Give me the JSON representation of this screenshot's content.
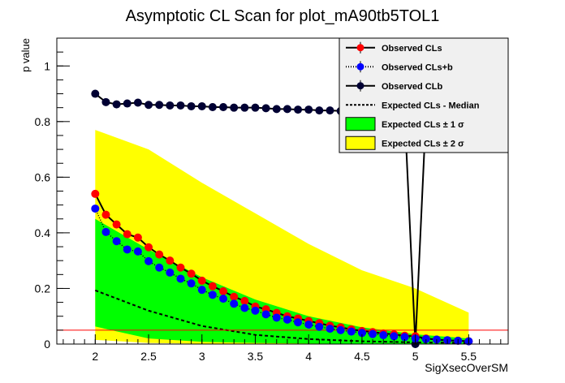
{
  "chart_data": {
    "type": "line",
    "title": "Asymptotic CL Scan for plot_mA90tb5TOL1",
    "xlabel": "SigXsecOverSM",
    "ylabel": "p value",
    "xlim": [
      1.64,
      5.87
    ],
    "ylim": [
      0,
      1.1
    ],
    "xticks": [
      "2",
      "2.5",
      "3",
      "3.5",
      "4",
      "4.5",
      "5",
      "5.5"
    ],
    "yticks": [
      "0",
      "0.2",
      "0.4",
      "0.6",
      "0.8",
      "1"
    ],
    "threshold": 0.05,
    "x": [
      2.0,
      2.1,
      2.2,
      2.3,
      2.4,
      2.5,
      2.6,
      2.7,
      2.8,
      2.9,
      3.0,
      3.1,
      3.2,
      3.3,
      3.4,
      3.5,
      3.6,
      3.7,
      3.8,
      3.9,
      4.0,
      4.1,
      4.2,
      4.3,
      4.4,
      4.5,
      4.6,
      4.7,
      4.8,
      4.9,
      5.0,
      5.1,
      5.2,
      5.3,
      5.4,
      5.5
    ],
    "series": [
      {
        "name": "Observed CLs",
        "color": "#ff0000",
        "values": [
          0.54,
          0.465,
          0.43,
          0.395,
          0.383,
          0.348,
          0.322,
          0.3,
          0.275,
          0.253,
          0.228,
          0.208,
          0.19,
          0.17,
          0.155,
          0.135,
          0.125,
          0.112,
          0.1,
          0.092,
          0.083,
          0.075,
          0.066,
          0.06,
          0.053,
          0.047,
          0.043,
          0.038,
          0.035,
          0.03,
          0.028,
          0.02,
          0.016,
          0.013,
          0.012,
          0.01
        ]
      },
      {
        "name": "Observed CLs+b",
        "color": "#0000ff",
        "values": [
          0.487,
          0.403,
          0.37,
          0.34,
          0.333,
          0.298,
          0.275,
          0.257,
          0.235,
          0.218,
          0.195,
          0.177,
          0.163,
          0.145,
          0.13,
          0.12,
          0.107,
          0.095,
          0.088,
          0.078,
          0.07,
          0.062,
          0.055,
          0.05,
          0.045,
          0.04,
          0.036,
          0.032,
          0.028,
          0.025,
          0.02,
          0.018,
          0.016,
          0.014,
          0.012,
          0.01
        ]
      },
      {
        "name": "Observed CLb",
        "color": "#000033",
        "values": [
          0.9,
          0.87,
          0.862,
          0.865,
          0.868,
          0.86,
          0.86,
          0.858,
          0.858,
          0.855,
          0.855,
          0.852,
          0.852,
          0.85,
          0.85,
          0.85,
          0.848,
          0.845,
          0.845,
          0.843,
          0.843,
          0.84,
          0.84,
          0.838,
          0.838,
          0.835,
          0.835,
          0.833,
          0.832,
          0.83,
          0.0,
          0.83,
          0.83,
          0.83,
          0.83,
          0.83
        ]
      }
    ],
    "expected": {
      "x": [
        2.0,
        2.5,
        3.0,
        3.5,
        4.0,
        4.5,
        5.0,
        5.5
      ],
      "median": [
        0.193,
        0.12,
        0.065,
        0.033,
        0.018,
        0.01,
        0.006,
        0.004
      ],
      "band1_hi": [
        0.45,
        0.34,
        0.24,
        0.16,
        0.1,
        0.06,
        0.035,
        0.02
      ],
      "band1_lo": [
        0.063,
        0.02,
        0.008,
        0.004,
        0.002,
        0.001,
        0.001,
        0.001
      ],
      "band2_hi": [
        0.77,
        0.7,
        0.58,
        0.47,
        0.36,
        0.265,
        0.2,
        0.113
      ],
      "band2_lo": [
        0.015,
        0.004,
        0.001,
        0,
        0,
        0,
        0,
        0
      ]
    },
    "legend": {
      "placement": "top-right",
      "entries": [
        "Observed CLs",
        "Observed CLs+b",
        "Observed CLb",
        "Expected CLs - Median",
        "Expected CLs   ± 1 σ",
        "Expected CLs   ± 2 σ"
      ]
    },
    "colors": {
      "band1": "#00ff00",
      "band2": "#ffff00",
      "threshold": "#ff0000"
    }
  }
}
